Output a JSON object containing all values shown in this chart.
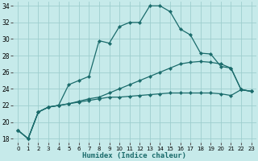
{
  "xlabel": "Humidex (Indice chaleur)",
  "xlim": [
    -0.5,
    23.5
  ],
  "ylim": [
    17.5,
    34.5
  ],
  "yticks": [
    18,
    20,
    22,
    24,
    26,
    28,
    30,
    32,
    34
  ],
  "xticks": [
    0,
    1,
    2,
    3,
    4,
    5,
    6,
    7,
    8,
    9,
    10,
    11,
    12,
    13,
    14,
    15,
    16,
    17,
    18,
    19,
    20,
    21,
    22,
    23
  ],
  "background_color": "#c6eaea",
  "grid_color": "#9ecece",
  "line_color": "#1a6b6b",
  "line1": [
    19.0,
    18.0,
    21.2,
    21.8,
    22.0,
    24.5,
    25.0,
    25.5,
    29.8,
    29.5,
    31.5,
    32.0,
    32.0,
    34.0,
    34.0,
    33.3,
    31.2,
    30.5,
    28.3,
    28.2,
    26.7,
    26.5,
    23.9,
    23.7
  ],
  "line2": [
    19.0,
    18.0,
    21.2,
    21.8,
    22.0,
    22.2,
    22.5,
    22.8,
    23.0,
    23.5,
    24.0,
    24.5,
    25.0,
    25.5,
    26.0,
    26.5,
    27.0,
    27.2,
    27.3,
    27.2,
    27.0,
    26.5,
    23.9,
    23.7
  ],
  "line3": [
    19.0,
    18.0,
    21.2,
    21.8,
    22.0,
    22.2,
    22.4,
    22.6,
    22.8,
    23.0,
    23.0,
    23.1,
    23.2,
    23.3,
    23.4,
    23.5,
    23.5,
    23.5,
    23.5,
    23.5,
    23.4,
    23.2,
    23.9,
    23.7
  ]
}
